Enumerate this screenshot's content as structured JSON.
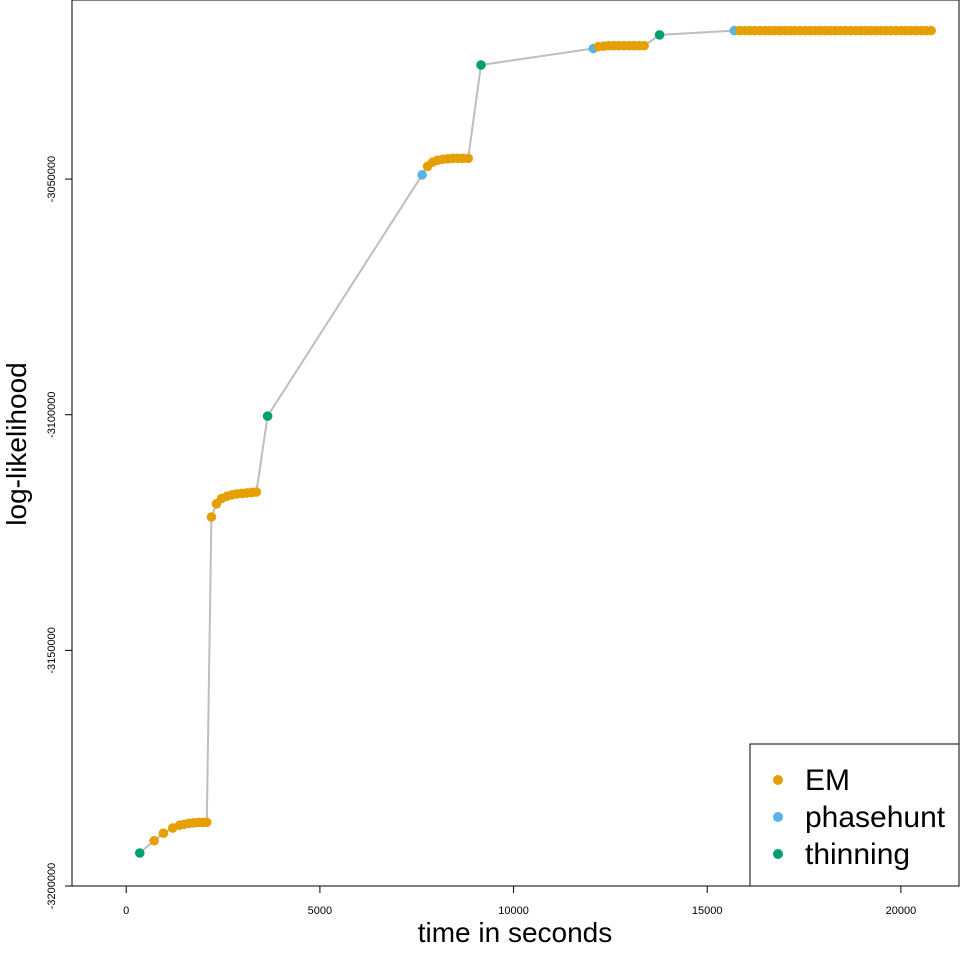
{
  "chart_data": {
    "type": "scatter",
    "title": "",
    "xlabel": "time in seconds",
    "ylabel": "log-likelihood",
    "xlim": [
      -1400,
      21500
    ],
    "ylim": [
      -3200000,
      -3012000
    ],
    "x_ticks": [
      0,
      5000,
      10000,
      15000,
      20000
    ],
    "x_tick_labels": [
      "0",
      "5000",
      "10000",
      "15000",
      "20000"
    ],
    "y_ticks": [
      -3200000,
      -3150000,
      -3100000,
      -3050000
    ],
    "y_tick_labels": [
      "-3200000",
      "-3150000",
      "-3100000",
      "-3050000"
    ],
    "grid": false,
    "legend_position": "bottom-right",
    "line_color": "#bebebe",
    "colors": {
      "EM": "#E69F00",
      "phasehunt": "#56B4E9",
      "thinning": "#009E73"
    },
    "legend": [
      {
        "label": "EM",
        "color": "#E69F00"
      },
      {
        "label": "phasehunt",
        "color": "#56B4E9"
      },
      {
        "label": "thinning",
        "color": "#009E73"
      }
    ],
    "points": [
      {
        "x": 350,
        "y": -3193000,
        "type": "thinning"
      },
      {
        "x": 720,
        "y": -3190400,
        "type": "EM"
      },
      {
        "x": 960,
        "y": -3188800,
        "type": "EM"
      },
      {
        "x": 1200,
        "y": -3187700,
        "type": "EM"
      },
      {
        "x": 1380,
        "y": -3187100,
        "type": "EM"
      },
      {
        "x": 1500,
        "y": -3186900,
        "type": "EM"
      },
      {
        "x": 1620,
        "y": -3186700,
        "type": "EM"
      },
      {
        "x": 1740,
        "y": -3186600,
        "type": "EM"
      },
      {
        "x": 1860,
        "y": -3186500,
        "type": "EM"
      },
      {
        "x": 1980,
        "y": -3186500,
        "type": "EM"
      },
      {
        "x": 2080,
        "y": -3186500,
        "type": "EM"
      },
      {
        "x": 2200,
        "y": -3121700,
        "type": "EM"
      },
      {
        "x": 2330,
        "y": -3118900,
        "type": "EM"
      },
      {
        "x": 2460,
        "y": -3117800,
        "type": "EM"
      },
      {
        "x": 2600,
        "y": -3117300,
        "type": "EM"
      },
      {
        "x": 2730,
        "y": -3117000,
        "type": "EM"
      },
      {
        "x": 2860,
        "y": -3116800,
        "type": "EM"
      },
      {
        "x": 2990,
        "y": -3116700,
        "type": "EM"
      },
      {
        "x": 3120,
        "y": -3116600,
        "type": "EM"
      },
      {
        "x": 3240,
        "y": -3116500,
        "type": "EM"
      },
      {
        "x": 3360,
        "y": -3116400,
        "type": "EM"
      },
      {
        "x": 3650,
        "y": -3100300,
        "type": "thinning"
      },
      {
        "x": 7640,
        "y": -3049100,
        "type": "phasehunt"
      },
      {
        "x": 7780,
        "y": -3047300,
        "type": "EM"
      },
      {
        "x": 7910,
        "y": -3046400,
        "type": "EM"
      },
      {
        "x": 8040,
        "y": -3046000,
        "type": "EM"
      },
      {
        "x": 8170,
        "y": -3045800,
        "type": "EM"
      },
      {
        "x": 8300,
        "y": -3045700,
        "type": "EM"
      },
      {
        "x": 8430,
        "y": -3045600,
        "type": "EM"
      },
      {
        "x": 8560,
        "y": -3045600,
        "type": "EM"
      },
      {
        "x": 8690,
        "y": -3045600,
        "type": "EM"
      },
      {
        "x": 8830,
        "y": -3045600,
        "type": "EM"
      },
      {
        "x": 9160,
        "y": -3025800,
        "type": "thinning"
      },
      {
        "x": 12060,
        "y": -3022300,
        "type": "phasehunt"
      },
      {
        "x": 12190,
        "y": -3021900,
        "type": "EM"
      },
      {
        "x": 12330,
        "y": -3021800,
        "type": "EM"
      },
      {
        "x": 12460,
        "y": -3021700,
        "type": "EM"
      },
      {
        "x": 12590,
        "y": -3021700,
        "type": "EM"
      },
      {
        "x": 12720,
        "y": -3021700,
        "type": "EM"
      },
      {
        "x": 12850,
        "y": -3021700,
        "type": "EM"
      },
      {
        "x": 12980,
        "y": -3021700,
        "type": "EM"
      },
      {
        "x": 13110,
        "y": -3021700,
        "type": "EM"
      },
      {
        "x": 13240,
        "y": -3021700,
        "type": "EM"
      },
      {
        "x": 13370,
        "y": -3021700,
        "type": "EM"
      },
      {
        "x": 13770,
        "y": -3019400,
        "type": "thinning"
      },
      {
        "x": 15700,
        "y": -3018500,
        "type": "phasehunt"
      },
      {
        "x": 15840,
        "y": -3018500,
        "type": "EM"
      },
      {
        "x": 15970,
        "y": -3018500,
        "type": "EM"
      },
      {
        "x": 16100,
        "y": -3018500,
        "type": "EM"
      },
      {
        "x": 16230,
        "y": -3018500,
        "type": "EM"
      },
      {
        "x": 16360,
        "y": -3018500,
        "type": "EM"
      },
      {
        "x": 16490,
        "y": -3018500,
        "type": "EM"
      },
      {
        "x": 16620,
        "y": -3018500,
        "type": "EM"
      },
      {
        "x": 16750,
        "y": -3018500,
        "type": "EM"
      },
      {
        "x": 16880,
        "y": -3018500,
        "type": "EM"
      },
      {
        "x": 17010,
        "y": -3018500,
        "type": "EM"
      },
      {
        "x": 17140,
        "y": -3018500,
        "type": "EM"
      },
      {
        "x": 17270,
        "y": -3018500,
        "type": "EM"
      },
      {
        "x": 17400,
        "y": -3018500,
        "type": "EM"
      },
      {
        "x": 17530,
        "y": -3018500,
        "type": "EM"
      },
      {
        "x": 17660,
        "y": -3018500,
        "type": "EM"
      },
      {
        "x": 17790,
        "y": -3018500,
        "type": "EM"
      },
      {
        "x": 17920,
        "y": -3018500,
        "type": "EM"
      },
      {
        "x": 18050,
        "y": -3018500,
        "type": "EM"
      },
      {
        "x": 18180,
        "y": -3018500,
        "type": "EM"
      },
      {
        "x": 18310,
        "y": -3018500,
        "type": "EM"
      },
      {
        "x": 18440,
        "y": -3018500,
        "type": "EM"
      },
      {
        "x": 18570,
        "y": -3018500,
        "type": "EM"
      },
      {
        "x": 18700,
        "y": -3018500,
        "type": "EM"
      },
      {
        "x": 18830,
        "y": -3018500,
        "type": "EM"
      },
      {
        "x": 18960,
        "y": -3018500,
        "type": "EM"
      },
      {
        "x": 19090,
        "y": -3018500,
        "type": "EM"
      },
      {
        "x": 19220,
        "y": -3018500,
        "type": "EM"
      },
      {
        "x": 19350,
        "y": -3018500,
        "type": "EM"
      },
      {
        "x": 19480,
        "y": -3018500,
        "type": "EM"
      },
      {
        "x": 19610,
        "y": -3018500,
        "type": "EM"
      },
      {
        "x": 19740,
        "y": -3018500,
        "type": "EM"
      },
      {
        "x": 19870,
        "y": -3018500,
        "type": "EM"
      },
      {
        "x": 20000,
        "y": -3018500,
        "type": "EM"
      },
      {
        "x": 20130,
        "y": -3018500,
        "type": "EM"
      },
      {
        "x": 20260,
        "y": -3018500,
        "type": "EM"
      },
      {
        "x": 20390,
        "y": -3018500,
        "type": "EM"
      },
      {
        "x": 20520,
        "y": -3018500,
        "type": "EM"
      },
      {
        "x": 20650,
        "y": -3018500,
        "type": "EM"
      },
      {
        "x": 20780,
        "y": -3018500,
        "type": "EM"
      }
    ]
  }
}
